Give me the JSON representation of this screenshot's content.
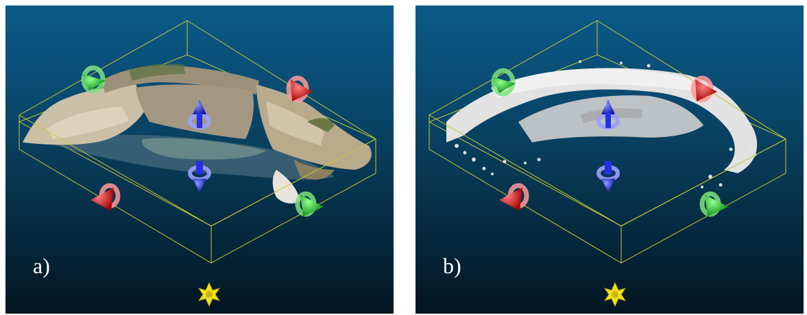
{
  "panels": [
    {
      "id": "a",
      "label": "a)",
      "point_cloud": "colored"
    },
    {
      "id": "b",
      "label": "b)",
      "point_cloud": "grayscale"
    }
  ],
  "colors": {
    "background_top": "#0a5a88",
    "background_bottom": "#031522",
    "bounding_box": "#c8c832",
    "x_axis_gizmo": "#e0201c",
    "y_axis_gizmo": "#1cc21c",
    "z_axis_gizmo": "#2530e6",
    "center_gizmo": "#f2e21a"
  },
  "icons": [
    "rotate-x-gizmo-icon",
    "rotate-y-gizmo-icon",
    "move-z-gizmo-icon",
    "free-transform-gizmo-icon"
  ]
}
